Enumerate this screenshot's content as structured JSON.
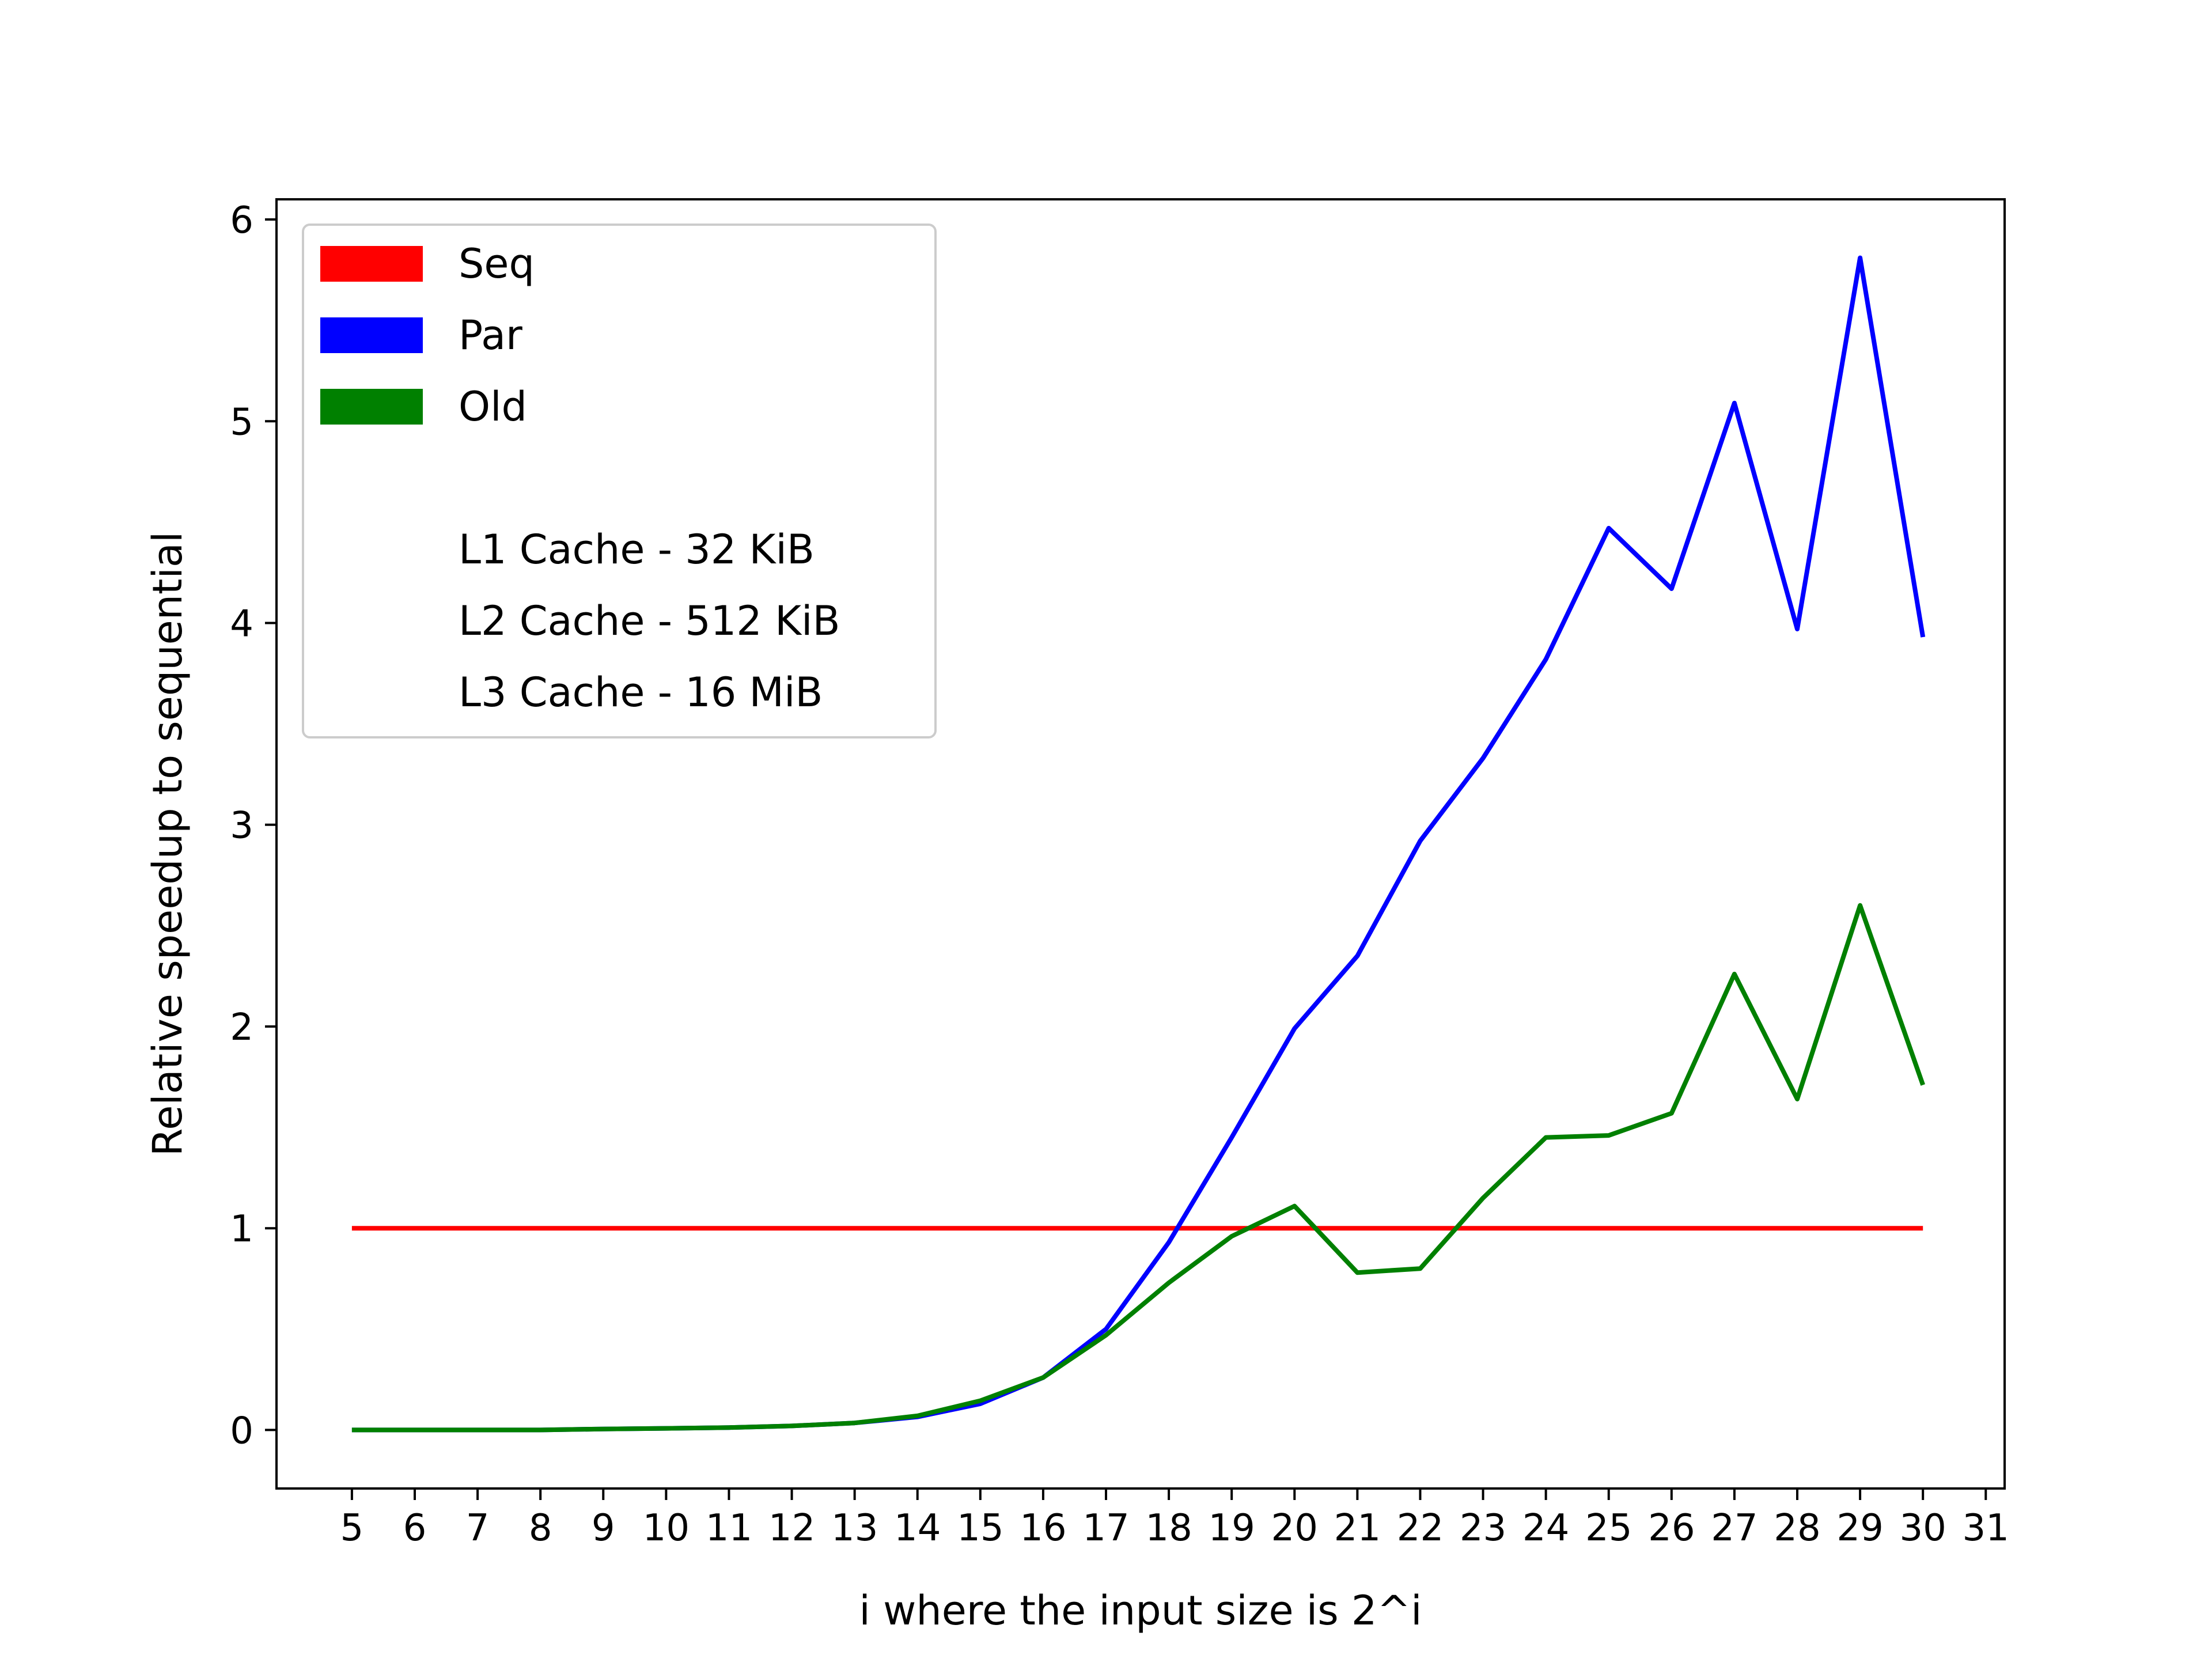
{
  "chart_data": {
    "type": "line",
    "title": "",
    "xlabel": "i where the input size is 2^i",
    "ylabel": "Relative speedup to sequential",
    "x": [
      5,
      6,
      7,
      8,
      9,
      10,
      11,
      12,
      13,
      14,
      15,
      16,
      17,
      18,
      19,
      20,
      21,
      22,
      23,
      24,
      25,
      26,
      27,
      28,
      29,
      30
    ],
    "xticks": [
      5,
      6,
      7,
      8,
      9,
      10,
      11,
      12,
      13,
      14,
      15,
      16,
      17,
      18,
      19,
      20,
      21,
      22,
      23,
      24,
      25,
      26,
      27,
      28,
      29,
      30,
      31
    ],
    "yticks": [
      0,
      1,
      2,
      3,
      4,
      5,
      6
    ],
    "xlim": [
      3.8,
      31.3
    ],
    "ylim": [
      -0.29,
      6.1
    ],
    "grid": false,
    "legend": {
      "placement": "top-left",
      "notes": [
        "L1 Cache - 32 KiB",
        "L2 Cache - 512 KiB",
        "L3 Cache - 16 MiB"
      ]
    },
    "series": [
      {
        "name": "Seq",
        "color": "#ff0000",
        "values": [
          1,
          1,
          1,
          1,
          1,
          1,
          1,
          1,
          1,
          1,
          1,
          1,
          1,
          1,
          1,
          1,
          1,
          1,
          1,
          1,
          1,
          1,
          1,
          1,
          1,
          1
        ]
      },
      {
        "name": "Par",
        "color": "#0000ff",
        "values": [
          0.0,
          0.0,
          0.0,
          0.0,
          0.005,
          0.008,
          0.012,
          0.02,
          0.035,
          0.065,
          0.13,
          0.26,
          0.5,
          0.93,
          1.45,
          1.99,
          2.35,
          2.92,
          3.33,
          3.82,
          4.47,
          4.17,
          5.09,
          3.97,
          5.81,
          3.93
        ]
      },
      {
        "name": "Old",
        "color": "#008000",
        "values": [
          0.0,
          0.0,
          0.0,
          0.0,
          0.005,
          0.008,
          0.012,
          0.02,
          0.035,
          0.07,
          0.145,
          0.26,
          0.47,
          0.73,
          0.96,
          1.11,
          0.78,
          0.8,
          1.15,
          1.45,
          1.46,
          1.57,
          2.26,
          1.64,
          2.6,
          1.71
        ]
      }
    ]
  }
}
